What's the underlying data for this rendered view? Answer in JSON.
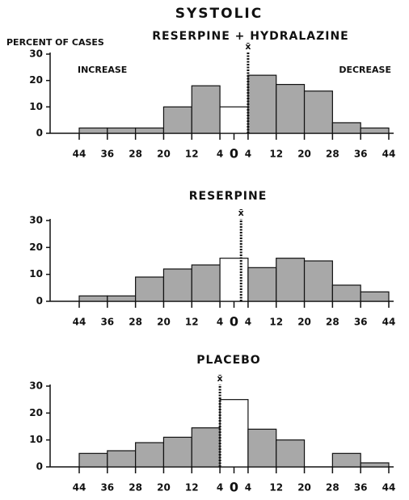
{
  "title": "SYSTOLIC",
  "chart_data": [
    {
      "type": "histogram",
      "title": "RESERPINE + HYDRALAZINE",
      "ylabel": "PERCENT OF CASES",
      "annotations": [
        "INCREASE",
        "DECREASE"
      ],
      "bins": [
        -44,
        -36,
        -28,
        -20,
        -12,
        -4,
        4,
        12,
        20,
        28,
        36,
        44
      ],
      "values": [
        2,
        2,
        2,
        10,
        18,
        10,
        22,
        18.5,
        16,
        4,
        2
      ],
      "bar_colors": [
        "#a8a8a8",
        "#a8a8a8",
        "#a8a8a8",
        "#a8a8a8",
        "#a8a8a8",
        "#ffffff",
        "#a8a8a8",
        "#a8a8a8",
        "#a8a8a8",
        "#a8a8a8",
        "#a8a8a8"
      ],
      "mean": 4,
      "mean_label": "x̄",
      "xlim": [
        -44,
        44
      ],
      "xticks": [
        {
          "value": -44,
          "label": "44"
        },
        {
          "value": -36,
          "label": "36"
        },
        {
          "value": -28,
          "label": "28"
        },
        {
          "value": -20,
          "label": "20"
        },
        {
          "value": -12,
          "label": "12"
        },
        {
          "value": -4,
          "label": "4"
        },
        0,
        4,
        12,
        20,
        28,
        36,
        44
      ],
      "ylim": [
        0,
        30
      ],
      "yticks": [
        0,
        10,
        20,
        30
      ]
    },
    {
      "type": "histogram",
      "title": "RESERPINE",
      "bins": [
        -44,
        -36,
        -28,
        -20,
        -12,
        -4,
        4,
        12,
        20,
        28,
        36,
        44
      ],
      "values": [
        2,
        2,
        9,
        12,
        13.5,
        16,
        12.5,
        16,
        15,
        6,
        3.5
      ],
      "bar_colors": [
        "#a8a8a8",
        "#a8a8a8",
        "#a8a8a8",
        "#a8a8a8",
        "#a8a8a8",
        "#ffffff",
        "#a8a8a8",
        "#a8a8a8",
        "#a8a8a8",
        "#a8a8a8",
        "#a8a8a8"
      ],
      "mean": 2,
      "mean_label": "x̄",
      "xlim": [
        -44,
        44
      ],
      "xticks": [
        {
          "value": -44,
          "label": "44"
        },
        {
          "value": -36,
          "label": "36"
        },
        {
          "value": -28,
          "label": "28"
        },
        {
          "value": -20,
          "label": "20"
        },
        {
          "value": -12,
          "label": "12"
        },
        {
          "value": -4,
          "label": "4"
        },
        0,
        4,
        12,
        20,
        28,
        36,
        44
      ],
      "ylim": [
        0,
        30
      ],
      "yticks": [
        0,
        10,
        20,
        30
      ]
    },
    {
      "type": "histogram",
      "title": "PLACEBO",
      "bins": [
        -44,
        -36,
        -28,
        -20,
        -12,
        -4,
        4,
        12,
        20,
        28,
        36,
        44
      ],
      "values": [
        5,
        6,
        9,
        11,
        14.5,
        25,
        14,
        10,
        0,
        5,
        1.5
      ],
      "bar_colors": [
        "#a8a8a8",
        "#a8a8a8",
        "#a8a8a8",
        "#a8a8a8",
        "#a8a8a8",
        "#ffffff",
        "#a8a8a8",
        "#a8a8a8",
        "#a8a8a8",
        "#a8a8a8",
        "#a8a8a8"
      ],
      "mean": -4,
      "mean_label": "x̄",
      "xlim": [
        -44,
        44
      ],
      "xticks": [
        {
          "value": -44,
          "label": "44"
        },
        {
          "value": -36,
          "label": "36"
        },
        {
          "value": -28,
          "label": "28"
        },
        {
          "value": -20,
          "label": "20"
        },
        {
          "value": -12,
          "label": "12"
        },
        {
          "value": -4,
          "label": "4"
        },
        0,
        4,
        12,
        20,
        28,
        36,
        44
      ],
      "ylim": [
        0,
        30
      ],
      "yticks": [
        0,
        10,
        20,
        30
      ]
    }
  ]
}
